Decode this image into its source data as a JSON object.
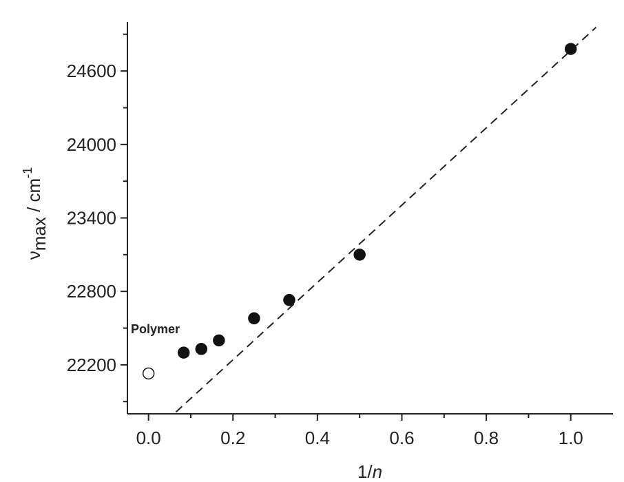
{
  "chart_data": {
    "type": "scatter",
    "x_label": {
      "text": "1/",
      "italic": "n"
    },
    "y_label": {
      "symbol": "ν",
      "subscript": "max",
      "unit": " / cm",
      "superscript": "-1"
    },
    "xlim": [
      -0.05,
      1.1
    ],
    "xticks": [
      {
        "value": 0,
        "label": "0.0"
      },
      0.2,
      0.4,
      0.6,
      0.8,
      {
        "value": 1,
        "label": "1.0"
      }
    ],
    "xminorticks": [
      0.1,
      0.3,
      0.5,
      0.7,
      0.9
    ],
    "ylim": [
      21800,
      25000
    ],
    "yticks": [
      22200,
      22800,
      23400,
      24000,
      24600
    ],
    "yminorticks": [
      21900,
      22500,
      23100,
      23700,
      24300,
      24900
    ],
    "series": [
      {
        "color": "#111111",
        "filled": true,
        "x": [
          0.0833,
          0.125,
          0.1667,
          0.25,
          0.3333,
          0.5,
          1.0
        ],
        "values": [
          22300,
          22330,
          22400,
          22580,
          22730,
          23100,
          24780
        ]
      },
      {
        "color": "#111111",
        "filled": false,
        "x": [
          0
        ],
        "values": [
          22130
        ]
      }
    ],
    "fit_line": {
      "x": [
        0.065,
        1.06
      ],
      "values": [
        21815,
        24957
      ],
      "dashed": true
    },
    "annotations": [
      "Polymer"
    ]
  }
}
